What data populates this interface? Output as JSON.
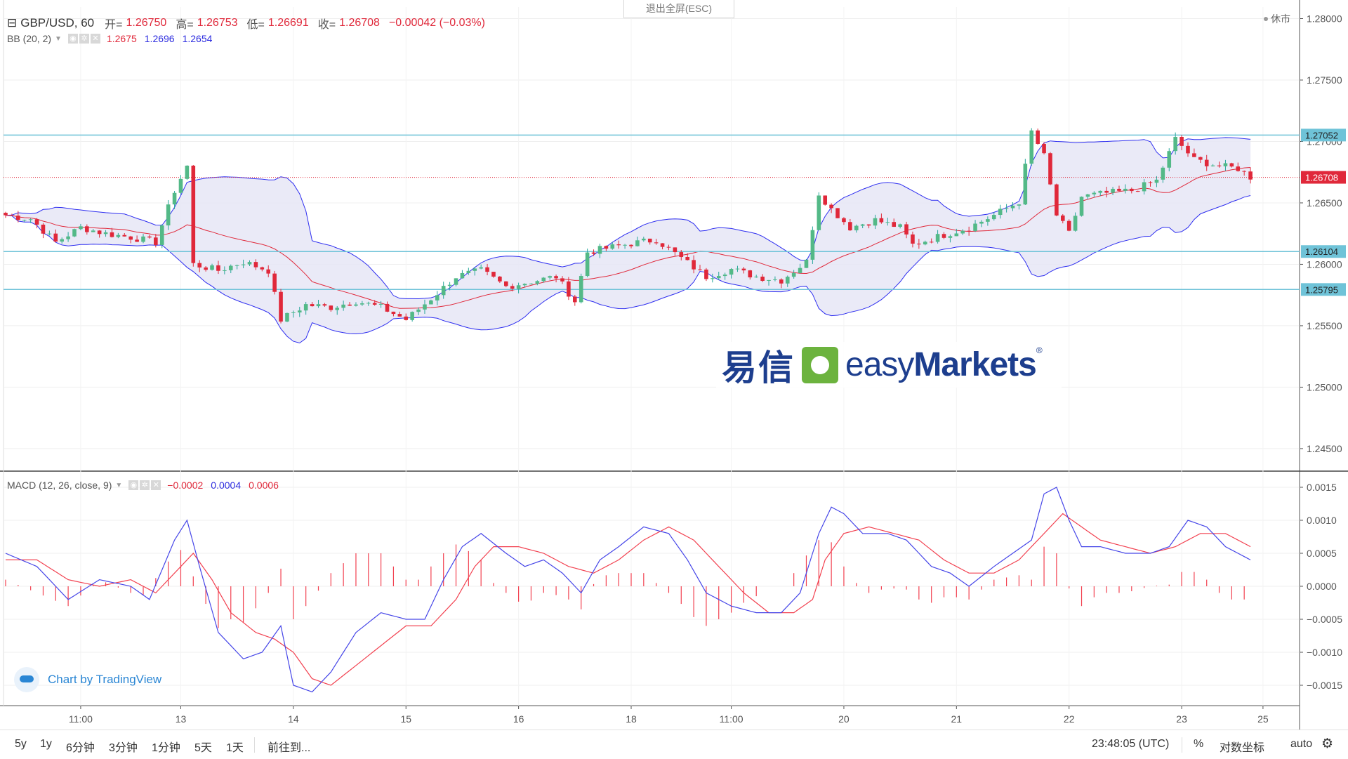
{
  "header": {
    "symbol": "GBP/USD, 60",
    "open_label": "开=",
    "open_value": "1.26750",
    "high_label": "高=",
    "high_value": "1.26753",
    "low_label": "低=",
    "low_value": "1.26691",
    "close_label": "收=",
    "close_value": "1.26708",
    "change": "−0.00042 (−0.03%)"
  },
  "exit_fullscreen": "退出全屏(ESC)",
  "market_status": "休市",
  "bb_legend": {
    "name": "BB (20, 2)",
    "v1": "1.2675",
    "v2": "1.2696",
    "v3": "1.2654"
  },
  "macd_legend": {
    "name": "MACD (12, 26, close, 9)",
    "v1": "−0.0002",
    "v2": "0.0004",
    "v3": "0.0006"
  },
  "watermark": {
    "cn": "易信",
    "en_light": "easy",
    "en_bold": "Markets",
    "reg": "®"
  },
  "attribution": "Chart by TradingView",
  "toolbar": {
    "ranges": [
      "5y",
      "1y",
      "6分钟",
      "3分钟",
      "1分钟",
      "5天",
      "1天"
    ],
    "goto": "前往到...",
    "time": "23:48:05 (UTC)",
    "percent": "%",
    "log": "对数坐标",
    "auto": "auto"
  },
  "colors": {
    "up": "#26a69a",
    "up_fill": "#53b987",
    "down": "#e0283a",
    "bb_band": "#2d2df0",
    "bb_fill": "#e6e6f6",
    "hline": "#6fc3d8",
    "signal": "#f24150",
    "macd": "#4646e8"
  },
  "chart_data": [
    {
      "type": "candlestick",
      "title": "GBP/USD, 60",
      "timeframe": "60 min",
      "y_ticks": [
        "1.28000",
        "1.27500",
        "1.27000",
        "1.26500",
        "1.26000",
        "1.25500",
        "1.25000",
        "1.24500"
      ],
      "ylim": [
        1.2435,
        1.2815
      ],
      "x_ticks": [
        "11:00",
        "13",
        "14",
        "15",
        "16",
        "18",
        "11:00",
        "20",
        "21",
        "22",
        "23",
        "25"
      ],
      "horizontal_lines": [
        {
          "value": 1.27052,
          "label": "1.27052"
        },
        {
          "value": 1.26104,
          "label": "1.26104"
        },
        {
          "value": 1.25795,
          "label": "1.25795"
        }
      ],
      "last_price": {
        "value": 1.26708,
        "label": "1.26708"
      },
      "close_path": [
        [
          0,
          1.264
        ],
        [
          4,
          1.2637
        ],
        [
          8,
          1.2618
        ],
        [
          12,
          1.263
        ],
        [
          16,
          1.2625
        ],
        [
          20,
          1.2622
        ],
        [
          24,
          1.2618
        ],
        [
          27,
          1.266
        ],
        [
          29,
          1.268
        ],
        [
          30,
          1.26
        ],
        [
          34,
          1.2595
        ],
        [
          38,
          1.2602
        ],
        [
          42,
          1.2595
        ],
        [
          44,
          1.2555
        ],
        [
          48,
          1.2567
        ],
        [
          52,
          1.2565
        ],
        [
          56,
          1.257
        ],
        [
          60,
          1.2565
        ],
        [
          64,
          1.2555
        ],
        [
          68,
          1.2572
        ],
        [
          72,
          1.259
        ],
        [
          76,
          1.2595
        ],
        [
          80,
          1.2582
        ],
        [
          84,
          1.2586
        ],
        [
          88,
          1.259
        ],
        [
          91,
          1.257
        ],
        [
          93,
          1.261
        ],
        [
          96,
          1.2613
        ],
        [
          100,
          1.2617
        ],
        [
          104,
          1.262
        ],
        [
          108,
          1.2605
        ],
        [
          112,
          1.259
        ],
        [
          116,
          1.2596
        ],
        [
          120,
          1.259
        ],
        [
          124,
          1.2587
        ],
        [
          128,
          1.2602
        ],
        [
          130,
          1.2658
        ],
        [
          132,
          1.2645
        ],
        [
          135,
          1.263
        ],
        [
          139,
          1.2636
        ],
        [
          143,
          1.263
        ],
        [
          145,
          1.2616
        ],
        [
          150,
          1.2624
        ],
        [
          154,
          1.263
        ],
        [
          158,
          1.264
        ],
        [
          162,
          1.2651
        ],
        [
          164,
          1.2708
        ],
        [
          166,
          1.2688
        ],
        [
          168,
          1.264
        ],
        [
          170,
          1.2625
        ],
        [
          172,
          1.2655
        ],
        [
          176,
          1.2658
        ],
        [
          180,
          1.266
        ],
        [
          184,
          1.2668
        ],
        [
          187,
          1.2702
        ],
        [
          190,
          1.2685
        ],
        [
          194,
          1.268
        ],
        [
          197,
          1.2678
        ],
        [
          199,
          1.2671
        ]
      ]
    },
    {
      "type": "line",
      "title": "MACD (12, 26, close, 9)",
      "y_ticks": [
        "0.0015",
        "0.0010",
        "0.0005",
        "0.0000",
        "−0.0005",
        "−0.0010",
        "−0.0015"
      ],
      "ylim": [
        -0.00185,
        0.00185
      ],
      "series": [
        {
          "name": "MACD",
          "points": [
            [
              0,
              0.0005
            ],
            [
              5,
              0.0003
            ],
            [
              10,
              -0.0002
            ],
            [
              15,
              0.0001
            ],
            [
              20,
              0.0
            ],
            [
              23,
              -0.0002
            ],
            [
              27,
              0.0007
            ],
            [
              29,
              0.001
            ],
            [
              31,
              0.0003
            ],
            [
              34,
              -0.0007
            ],
            [
              38,
              -0.0011
            ],
            [
              41,
              -0.001
            ],
            [
              44,
              -0.0006
            ],
            [
              46,
              -0.0015
            ],
            [
              49,
              -0.0016
            ],
            [
              52,
              -0.0013
            ],
            [
              56,
              -0.0007
            ],
            [
              60,
              -0.0004
            ],
            [
              64,
              -0.0005
            ],
            [
              67,
              -0.0005
            ],
            [
              70,
              0.0001
            ],
            [
              73,
              0.0006
            ],
            [
              76,
              0.0008
            ],
            [
              80,
              0.0005
            ],
            [
              83,
              0.0003
            ],
            [
              86,
              0.0004
            ],
            [
              89,
              0.0002
            ],
            [
              92,
              -0.0001
            ],
            [
              95,
              0.0004
            ],
            [
              98,
              0.0006
            ],
            [
              102,
              0.0009
            ],
            [
              106,
              0.0008
            ],
            [
              109,
              0.0004
            ],
            [
              112,
              -0.0001
            ],
            [
              116,
              -0.0003
            ],
            [
              120,
              -0.0004
            ],
            [
              124,
              -0.0004
            ],
            [
              127,
              -0.0001
            ],
            [
              130,
              0.0008
            ],
            [
              132,
              0.0012
            ],
            [
              134,
              0.0011
            ],
            [
              137,
              0.0008
            ],
            [
              141,
              0.0008
            ],
            [
              144,
              0.0007
            ],
            [
              148,
              0.0003
            ],
            [
              151,
              0.0002
            ],
            [
              154,
              0.0
            ],
            [
              158,
              0.0003
            ],
            [
              161,
              0.0005
            ],
            [
              164,
              0.0007
            ],
            [
              166,
              0.0014
            ],
            [
              168,
              0.0015
            ],
            [
              170,
              0.001
            ],
            [
              172,
              0.0006
            ],
            [
              175,
              0.0006
            ],
            [
              179,
              0.0005
            ],
            [
              183,
              0.0005
            ],
            [
              186,
              0.0006
            ],
            [
              189,
              0.001
            ],
            [
              192,
              0.0009
            ],
            [
              195,
              0.0006
            ],
            [
              199,
              0.0004
            ]
          ]
        },
        {
          "name": "Signal",
          "points": [
            [
              0,
              0.0004
            ],
            [
              5,
              0.0004
            ],
            [
              10,
              0.0001
            ],
            [
              15,
              0.0
            ],
            [
              20,
              0.0001
            ],
            [
              24,
              -0.0001
            ],
            [
              28,
              0.0003
            ],
            [
              30,
              0.0005
            ],
            [
              33,
              0.0001
            ],
            [
              36,
              -0.0004
            ],
            [
              40,
              -0.0007
            ],
            [
              43,
              -0.0008
            ],
            [
              46,
              -0.001
            ],
            [
              49,
              -0.0014
            ],
            [
              52,
              -0.0015
            ],
            [
              56,
              -0.0012
            ],
            [
              60,
              -0.0009
            ],
            [
              64,
              -0.0006
            ],
            [
              68,
              -0.0006
            ],
            [
              72,
              -0.0002
            ],
            [
              75,
              0.0003
            ],
            [
              78,
              0.0006
            ],
            [
              82,
              0.0006
            ],
            [
              86,
              0.0005
            ],
            [
              90,
              0.0003
            ],
            [
              94,
              0.0002
            ],
            [
              98,
              0.0004
            ],
            [
              102,
              0.0007
            ],
            [
              106,
              0.0009
            ],
            [
              110,
              0.0007
            ],
            [
              114,
              0.0003
            ],
            [
              118,
              -0.0001
            ],
            [
              122,
              -0.0004
            ],
            [
              126,
              -0.0004
            ],
            [
              129,
              -0.0002
            ],
            [
              131,
              0.0004
            ],
            [
              134,
              0.0008
            ],
            [
              138,
              0.0009
            ],
            [
              142,
              0.0008
            ],
            [
              146,
              0.0007
            ],
            [
              150,
              0.0004
            ],
            [
              154,
              0.0002
            ],
            [
              158,
              0.0002
            ],
            [
              162,
              0.0004
            ],
            [
              166,
              0.0008
            ],
            [
              169,
              0.0011
            ],
            [
              172,
              0.0009
            ],
            [
              175,
              0.0007
            ],
            [
              179,
              0.0006
            ],
            [
              183,
              0.0005
            ],
            [
              187,
              0.0006
            ],
            [
              191,
              0.0008
            ],
            [
              195,
              0.0008
            ],
            [
              199,
              0.0006
            ]
          ]
        }
      ],
      "histogram": "MACD − Signal"
    }
  ]
}
